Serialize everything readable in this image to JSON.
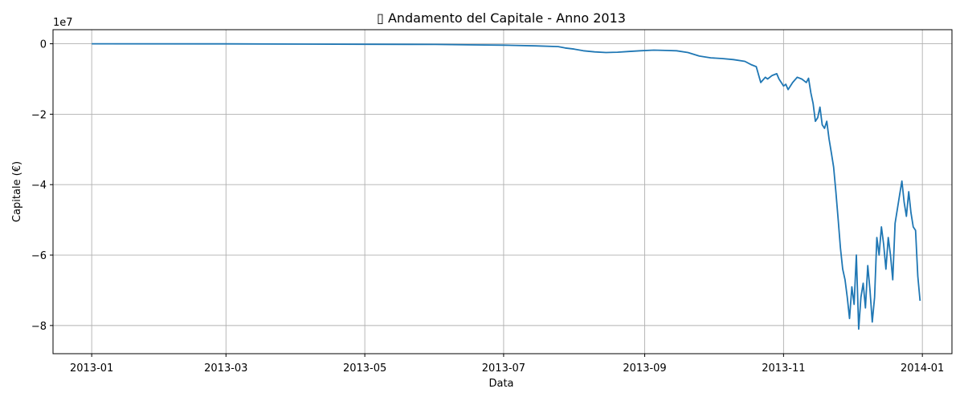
{
  "chart_data": {
    "type": "line",
    "title": "▯ Andamento del Capitale - Anno 2013",
    "xlabel": "Data",
    "ylabel": "Capitale (€)",
    "y_offset_label": "1e7",
    "y_scale": 10000000,
    "xlim": [
      "2012-12-15",
      "2014-01-14"
    ],
    "ylim": [
      -88000000,
      4000000
    ],
    "x_ticks": [
      "2013-01-01",
      "2013-03-01",
      "2013-05-01",
      "2013-07-01",
      "2013-09-01",
      "2013-11-01",
      "2014-01-01"
    ],
    "x_tick_labels": [
      "2013-01",
      "2013-03",
      "2013-05",
      "2013-07",
      "2013-09",
      "2013-11",
      "2014-01"
    ],
    "y_ticks": [
      0,
      -20000000,
      -40000000,
      -60000000,
      -80000000
    ],
    "y_tick_labels": [
      "0",
      "−2",
      "−4",
      "−6",
      "−8"
    ],
    "grid": true,
    "series": [
      {
        "color": "#1f77b4",
        "x": [
          "2013-01-01",
          "2013-03-01",
          "2013-05-01",
          "2013-06-01",
          "2013-06-15",
          "2013-07-01",
          "2013-07-15",
          "2013-07-25",
          "2013-07-28",
          "2013-08-01",
          "2013-08-05",
          "2013-08-10",
          "2013-08-15",
          "2013-08-20",
          "2013-08-25",
          "2013-08-30",
          "2013-09-05",
          "2013-09-10",
          "2013-09-15",
          "2013-09-20",
          "2013-09-25",
          "2013-09-30",
          "2013-10-05",
          "2013-10-10",
          "2013-10-15",
          "2013-10-18",
          "2013-10-20",
          "2013-10-22",
          "2013-10-24",
          "2013-10-25",
          "2013-10-27",
          "2013-10-29",
          "2013-10-30",
          "2013-11-01",
          "2013-11-02",
          "2013-11-03",
          "2013-11-05",
          "2013-11-07",
          "2013-11-09",
          "2013-11-10",
          "2013-11-11",
          "2013-11-12",
          "2013-11-13",
          "2013-11-14",
          "2013-11-15",
          "2013-11-16",
          "2013-11-17",
          "2013-11-18",
          "2013-11-19",
          "2013-11-20",
          "2013-11-21",
          "2013-11-22",
          "2013-11-23",
          "2013-11-24",
          "2013-11-25",
          "2013-11-26",
          "2013-11-27",
          "2013-11-28",
          "2013-11-29",
          "2013-11-30",
          "2013-12-01",
          "2013-12-02",
          "2013-12-03",
          "2013-12-04",
          "2013-12-05",
          "2013-12-06",
          "2013-12-07",
          "2013-12-08",
          "2013-12-09",
          "2013-12-10",
          "2013-12-11",
          "2013-12-12",
          "2013-12-13",
          "2013-12-14",
          "2013-12-15",
          "2013-12-16",
          "2013-12-17",
          "2013-12-18",
          "2013-12-19",
          "2013-12-20",
          "2013-12-21",
          "2013-12-22",
          "2013-12-23",
          "2013-12-24",
          "2013-12-25",
          "2013-12-26",
          "2013-12-27",
          "2013-12-28",
          "2013-12-29",
          "2013-12-30",
          "2013-12-31"
        ],
        "y": [
          0,
          -30000,
          -150000,
          -200000,
          -300000,
          -400000,
          -600000,
          -800000,
          -1200000,
          -1500000,
          -2000000,
          -2300000,
          -2500000,
          -2400000,
          -2200000,
          -2000000,
          -1800000,
          -1900000,
          -2000000,
          -2500000,
          -3500000,
          -4000000,
          -4200000,
          -4500000,
          -5000000,
          -6000000,
          -6500000,
          -11000000,
          -9500000,
          -10000000,
          -9000000,
          -8500000,
          -10000000,
          -12000000,
          -11500000,
          -13000000,
          -11000000,
          -9500000,
          -10000000,
          -10500000,
          -11000000,
          -9800000,
          -14000000,
          -17000000,
          -22000000,
          -21000000,
          -18000000,
          -23000000,
          -24000000,
          -22000000,
          -27000000,
          -31000000,
          -35000000,
          -42000000,
          -50000000,
          -58000000,
          -64000000,
          -67000000,
          -72000000,
          -78000000,
          -69000000,
          -74000000,
          -60000000,
          -81000000,
          -72000000,
          -68000000,
          -75000000,
          -63000000,
          -70000000,
          -79000000,
          -72000000,
          -55000000,
          -60000000,
          -52000000,
          -57000000,
          -64000000,
          -55000000,
          -60000000,
          -67000000,
          -51000000,
          -47000000,
          -43000000,
          -39000000,
          -45000000,
          -49000000,
          -42000000,
          -48000000,
          -52000000,
          -53000000,
          -66000000,
          -73000000
        ]
      }
    ]
  }
}
